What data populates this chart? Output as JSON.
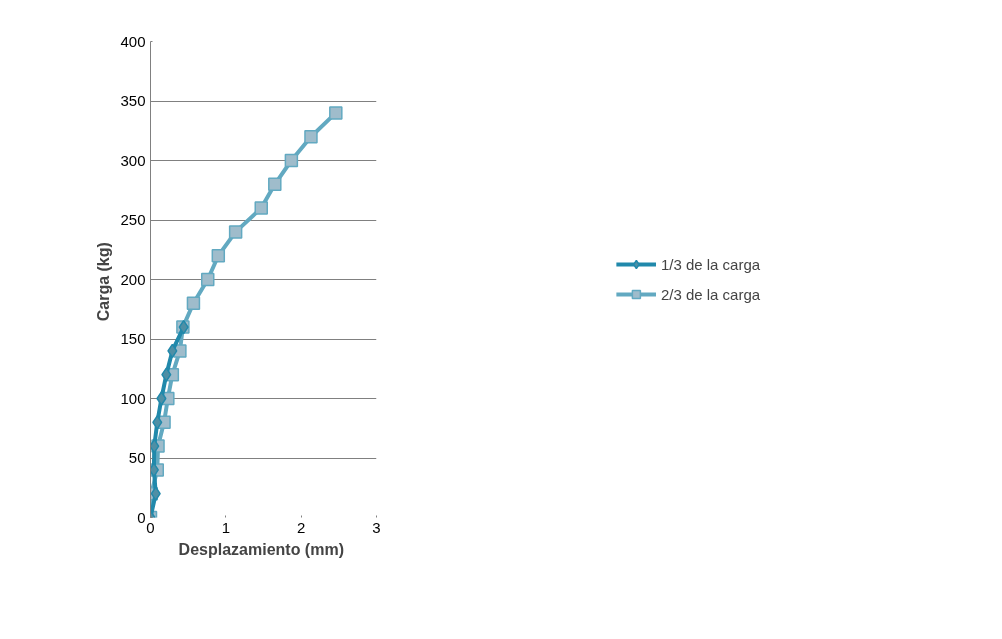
{
  "chart_data": {
    "type": "line",
    "xlabel": "Desplazamiento  (mm)",
    "ylabel": "Carga  (kg)",
    "xlim": [
      0,
      3
    ],
    "ylim": [
      0,
      400
    ],
    "xticks": [
      0,
      1,
      2,
      3
    ],
    "yticks": [
      0,
      50,
      100,
      150,
      200,
      250,
      300,
      350,
      400
    ],
    "grid": "y",
    "legend": "right",
    "line_style": "solid",
    "series": [
      {
        "name": "1/3 de la carga",
        "color": "#2189ab",
        "marker": "diamond",
        "x": [
          0,
          0.07,
          0.045,
          0.05,
          0.09,
          0.145,
          0.21,
          0.29,
          0.44
        ],
        "values": [
          0,
          20,
          40,
          60,
          80,
          100,
          120,
          140,
          160
        ]
      },
      {
        "name": "2/3 de la carga",
        "color": "#62a9c1",
        "marker": "square",
        "x": [
          0,
          0.01,
          0.09,
          0.1,
          0.18,
          0.23,
          0.29,
          0.39,
          0.43,
          0.57,
          0.76,
          0.9,
          1.13,
          1.47,
          1.65,
          1.87,
          2.13,
          2.46
        ],
        "values": [
          0,
          20,
          40,
          60,
          80,
          100,
          120,
          140,
          160,
          180,
          200,
          220,
          240,
          260,
          280,
          300,
          320,
          340
        ]
      }
    ]
  }
}
